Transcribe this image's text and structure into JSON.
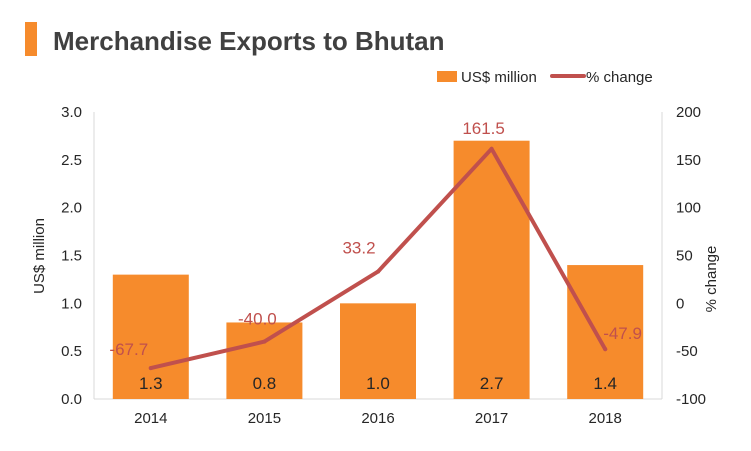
{
  "chart_data": {
    "type": "bar+line",
    "title": "Merchandise Exports to Bhutan",
    "categories": [
      "2014",
      "2015",
      "2016",
      "2017",
      "2018"
    ],
    "series": [
      {
        "name": "US$ million",
        "kind": "bar",
        "axis": "left",
        "values": [
          1.3,
          0.8,
          1.0,
          2.7,
          1.4
        ],
        "labels": [
          "1.3",
          "0.8",
          "1.0",
          "2.7",
          "1.4"
        ]
      },
      {
        "name": "% change",
        "kind": "line",
        "axis": "right",
        "values": [
          -67.7,
          -40.0,
          33.2,
          161.5,
          -47.9
        ],
        "labels": [
          "-67.7",
          "-40.0",
          "33.2",
          "161.5",
          "-47.9"
        ]
      }
    ],
    "ylabel_left": "US$ million",
    "ylabel_right": "% change",
    "ylim_left": [
      0,
      3.0
    ],
    "yticks_left": [
      "0.0",
      "0.5",
      "1.0",
      "1.5",
      "2.0",
      "2.5",
      "3.0"
    ],
    "ylim_right": [
      -100,
      200
    ],
    "yticks_right": [
      "-100",
      "-50",
      "0",
      "50",
      "100",
      "150",
      "200"
    ],
    "legend": [
      "US$ million",
      "% change"
    ],
    "legend_position": "top-right",
    "grid": false
  },
  "colors": {
    "accent": "#F68B2C",
    "bar": "#F68B2C",
    "line": "#C0504D",
    "line_label": "#C0504D",
    "axis": "#D9D9D9",
    "title": "#404040",
    "text": "#262626"
  }
}
